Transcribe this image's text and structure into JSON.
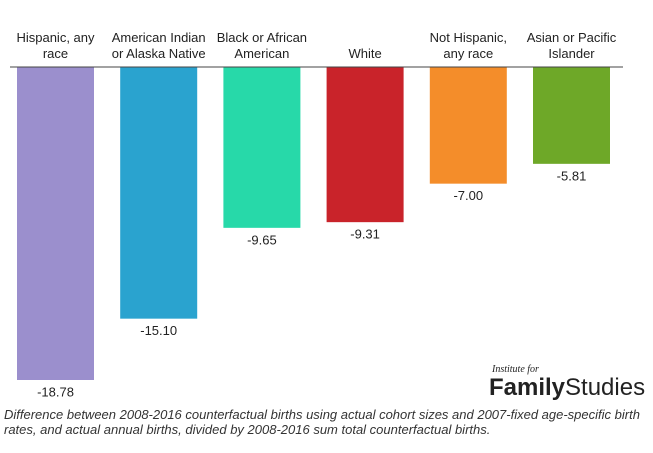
{
  "chart_data": {
    "type": "bar",
    "categories": [
      "Hispanic, any race",
      "American Indian or Alaska Native",
      "Black or African American",
      "White",
      "Not Hispanic, any race",
      "Asian or Pacific Islander"
    ],
    "values": [
      -18.78,
      -15.1,
      -9.65,
      -9.31,
      -7.0,
      -5.81
    ],
    "value_labels": [
      "-18.78",
      "-15.10",
      "-9.65",
      "-9.31",
      "-7.00",
      "-5.81"
    ],
    "colors": [
      "#9b8fcd",
      "#2aa3cf",
      "#27d9a9",
      "#c9232a",
      "#f48d2a",
      "#6ea828"
    ],
    "caption": "Difference between 2008-2016 counterfactual births using actual cohort sizes and 2007-fixed age-specific birth rates, and actual annual births, divided by 2008-2016 sum total counterfactual births."
  },
  "logo": {
    "tagline": "Institute for",
    "bold": "Family",
    "light": "Studies"
  }
}
